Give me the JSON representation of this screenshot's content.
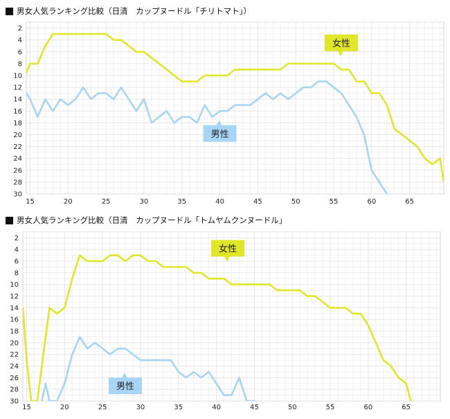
{
  "chart_data": [
    {
      "type": "line",
      "title": "男女人気ランキング比較（日清　カップヌードル「チリトマト」）",
      "x_ticks": [
        15,
        20,
        25,
        30,
        35,
        40,
        45,
        50,
        55,
        60,
        65
      ],
      "y_ticks": [
        2,
        4,
        6,
        8,
        10,
        12,
        14,
        16,
        18,
        20,
        22,
        24,
        26,
        28,
        30
      ],
      "xlim": [
        14.5,
        69.5
      ],
      "ylim": [
        1,
        30
      ],
      "y_inverted": true,
      "grid": true,
      "series": [
        {
          "name": "女性",
          "color": "#e0e62a",
          "points": [
            [
              14.5,
              9.5
            ],
            [
              15,
              8
            ],
            [
              16,
              8
            ],
            [
              17,
              5
            ],
            [
              18,
              3
            ],
            [
              19,
              3
            ],
            [
              20,
              3
            ],
            [
              21,
              3
            ],
            [
              22,
              3
            ],
            [
              23,
              3
            ],
            [
              24,
              3
            ],
            [
              25,
              3
            ],
            [
              26,
              4
            ],
            [
              27,
              4
            ],
            [
              28,
              5
            ],
            [
              29,
              6
            ],
            [
              30,
              6
            ],
            [
              31,
              7
            ],
            [
              32,
              8
            ],
            [
              33,
              9
            ],
            [
              34,
              10
            ],
            [
              35,
              11
            ],
            [
              36,
              11
            ],
            [
              37,
              11
            ],
            [
              38,
              10
            ],
            [
              39,
              10
            ],
            [
              40,
              10
            ],
            [
              41,
              10
            ],
            [
              42,
              9
            ],
            [
              43,
              9
            ],
            [
              44,
              9
            ],
            [
              45,
              9
            ],
            [
              46,
              9
            ],
            [
              47,
              9
            ],
            [
              48,
              9
            ],
            [
              49,
              8
            ],
            [
              50,
              8
            ],
            [
              51,
              8
            ],
            [
              52,
              8
            ],
            [
              53,
              8
            ],
            [
              54,
              8
            ],
            [
              55,
              8
            ],
            [
              56,
              9
            ],
            [
              57,
              9
            ],
            [
              58,
              11
            ],
            [
              59,
              11
            ],
            [
              60,
              13
            ],
            [
              61,
              13
            ],
            [
              62,
              15
            ],
            [
              63,
              19
            ],
            [
              64,
              20
            ],
            [
              65,
              21
            ],
            [
              66,
              22
            ],
            [
              67,
              24
            ],
            [
              68,
              25
            ],
            [
              69,
              24
            ],
            [
              69.5,
              28
            ]
          ]
        },
        {
          "name": "男性",
          "color": "#a8d4f6",
          "points": [
            [
              14.5,
              13
            ],
            [
              15,
              14
            ],
            [
              16,
              17
            ],
            [
              17,
              14
            ],
            [
              18,
              16
            ],
            [
              19,
              14
            ],
            [
              20,
              15
            ],
            [
              21,
              14
            ],
            [
              22,
              12
            ],
            [
              23,
              14
            ],
            [
              24,
              13
            ],
            [
              25,
              13
            ],
            [
              26,
              14
            ],
            [
              27,
              12
            ],
            [
              28,
              14
            ],
            [
              29,
              16
            ],
            [
              30,
              14
            ],
            [
              31,
              18
            ],
            [
              32,
              17
            ],
            [
              33,
              16
            ],
            [
              34,
              18
            ],
            [
              35,
              17
            ],
            [
              36,
              17
            ],
            [
              37,
              18
            ],
            [
              38,
              15
            ],
            [
              39,
              17
            ],
            [
              40,
              16
            ],
            [
              41,
              16
            ],
            [
              42,
              15
            ],
            [
              43,
              15
            ],
            [
              44,
              15
            ],
            [
              45,
              14
            ],
            [
              46,
              13
            ],
            [
              47,
              14
            ],
            [
              48,
              13
            ],
            [
              49,
              14
            ],
            [
              50,
              13
            ],
            [
              51,
              12
            ],
            [
              52,
              12
            ],
            [
              53,
              11
            ],
            [
              54,
              11
            ],
            [
              55,
              12
            ],
            [
              56,
              13
            ],
            [
              57,
              15
            ],
            [
              58,
              17
            ],
            [
              59,
              20
            ],
            [
              60,
              26
            ],
            [
              61,
              28
            ],
            [
              62,
              30
            ]
          ]
        }
      ],
      "callouts": [
        {
          "label": "女性",
          "series": 0,
          "bg": "#e0e62a",
          "color": "#222222",
          "x": 56,
          "y": 4.5,
          "pointer": "down"
        },
        {
          "label": "男性",
          "series": 1,
          "bg": "#a8d4f6",
          "color": "#222222",
          "x": 40,
          "y": 19.8,
          "pointer": "up"
        }
      ]
    },
    {
      "type": "line",
      "title": "男女人気ランキング比較（日清　カップヌードル「トムヤムクンヌードル」",
      "x_ticks": [
        15,
        20,
        25,
        30,
        35,
        40,
        45,
        50,
        55,
        60,
        65
      ],
      "y_ticks": [
        2,
        4,
        6,
        8,
        10,
        12,
        14,
        16,
        18,
        20,
        22,
        24,
        26,
        28,
        30
      ],
      "xlim": [
        14.5,
        69.5
      ],
      "ylim": [
        1,
        30
      ],
      "y_inverted": true,
      "grid": true,
      "series": [
        {
          "name": "女性",
          "color": "#e0e62a",
          "points": [
            [
              14.5,
              14
            ],
            [
              15,
              23
            ],
            [
              15.6,
              30
            ],
            [
              16.4,
              30
            ],
            [
              17,
              24
            ],
            [
              18,
              14
            ],
            [
              19,
              15
            ],
            [
              20,
              14
            ],
            [
              21,
              9
            ],
            [
              22,
              5
            ],
            [
              23,
              6
            ],
            [
              24,
              6
            ],
            [
              25,
              6
            ],
            [
              26,
              5
            ],
            [
              27,
              5
            ],
            [
              28,
              6
            ],
            [
              29,
              5
            ],
            [
              30,
              5
            ],
            [
              31,
              6
            ],
            [
              32,
              6
            ],
            [
              33,
              7
            ],
            [
              34,
              7
            ],
            [
              35,
              7
            ],
            [
              36,
              7
            ],
            [
              37,
              8
            ],
            [
              38,
              8
            ],
            [
              39,
              9
            ],
            [
              40,
              9
            ],
            [
              41,
              9
            ],
            [
              42,
              10
            ],
            [
              43,
              10
            ],
            [
              44,
              10
            ],
            [
              45,
              10
            ],
            [
              46,
              10
            ],
            [
              47,
              10
            ],
            [
              48,
              11
            ],
            [
              49,
              11
            ],
            [
              50,
              11
            ],
            [
              51,
              11
            ],
            [
              52,
              12
            ],
            [
              53,
              12
            ],
            [
              54,
              13
            ],
            [
              55,
              14
            ],
            [
              56,
              14
            ],
            [
              57,
              14
            ],
            [
              58,
              15
            ],
            [
              59,
              15
            ],
            [
              60,
              17
            ],
            [
              61,
              20
            ],
            [
              62,
              23
            ],
            [
              63,
              24
            ],
            [
              64,
              26
            ],
            [
              65,
              27
            ],
            [
              65.6,
              30
            ]
          ]
        },
        {
          "name": "男性",
          "color": "#a8d4f6",
          "points": [
            [
              17,
              30
            ],
            [
              17.5,
              27
            ],
            [
              18,
              30
            ],
            [
              19,
              30
            ],
            [
              20,
              27
            ],
            [
              21,
              22
            ],
            [
              22,
              19
            ],
            [
              23,
              21
            ],
            [
              24,
              20
            ],
            [
              25,
              21
            ],
            [
              26,
              22
            ],
            [
              27,
              21
            ],
            [
              28,
              21
            ],
            [
              29,
              22
            ],
            [
              30,
              23
            ],
            [
              31,
              23
            ],
            [
              32,
              23
            ],
            [
              33,
              23
            ],
            [
              34,
              23
            ],
            [
              35,
              25
            ],
            [
              36,
              26
            ],
            [
              37,
              25
            ],
            [
              38,
              26
            ],
            [
              39,
              25
            ],
            [
              40,
              27
            ],
            [
              41,
              29
            ],
            [
              42,
              29
            ],
            [
              43,
              26
            ],
            [
              44,
              30
            ],
            [
              45,
              30
            ],
            [
              45.6,
              30.3
            ]
          ]
        }
      ],
      "callouts": [
        {
          "label": "女性",
          "series": 0,
          "bg": "#e0e62a",
          "color": "#222222",
          "x": 41.5,
          "y": 3.8,
          "pointer": "down"
        },
        {
          "label": "男性",
          "series": 1,
          "bg": "#a8d4f6",
          "color": "#222222",
          "x": 28,
          "y": 27.4,
          "pointer": "up"
        }
      ]
    }
  ]
}
